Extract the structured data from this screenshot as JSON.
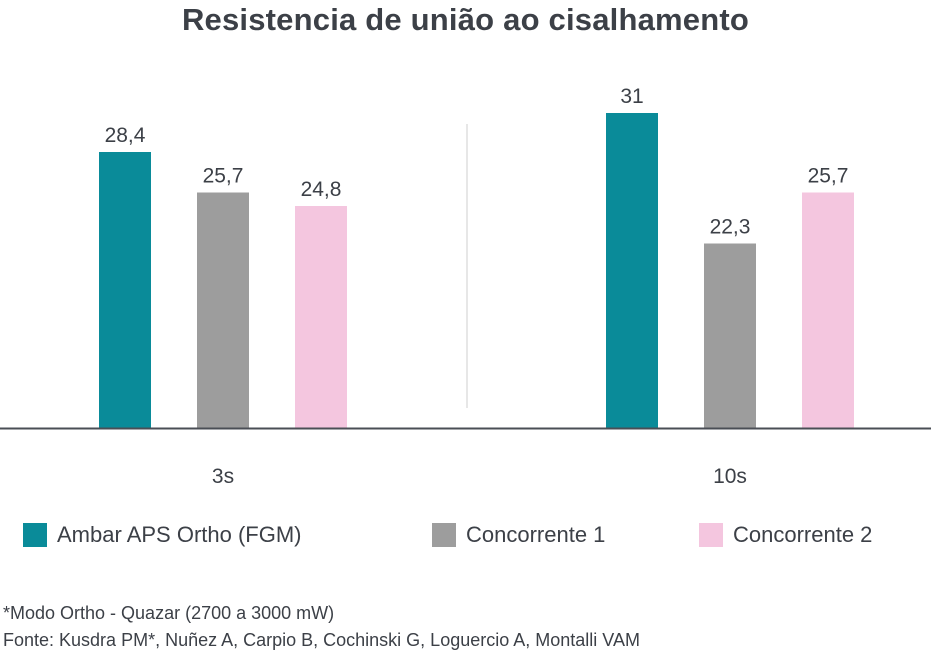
{
  "chart_data": {
    "type": "bar",
    "title": "Resistencia de união ao cisalhamento",
    "categories": [
      "3s",
      "10s"
    ],
    "series": [
      {
        "name": "Ambar APS Ortho (FGM)",
        "values": [
          28.4,
          31
        ],
        "labels": [
          "28,4",
          "31"
        ],
        "color": "#0a8b99"
      },
      {
        "name": "Concorrente 1",
        "values": [
          25.7,
          22.3
        ],
        "labels": [
          "25,7",
          "22,3"
        ],
        "color": "#9d9d9d"
      },
      {
        "name": "Concorrente 2",
        "values": [
          24.8,
          25.7
        ],
        "labels": [
          "24,8",
          "25,7"
        ],
        "color": "#f4c6df"
      }
    ],
    "xlabel": "",
    "ylabel": "",
    "ylim": [
      10,
      33
    ],
    "grid": false,
    "legend_position": "bottom"
  },
  "footnotes": [
    "*Modo Ortho - Quazar (2700 a 3000 mW)",
    "Fonte: Kusdra PM*, Nuñez A, Carpio B, Cochinski G, Loguercio A, Montalli VAM"
  ]
}
